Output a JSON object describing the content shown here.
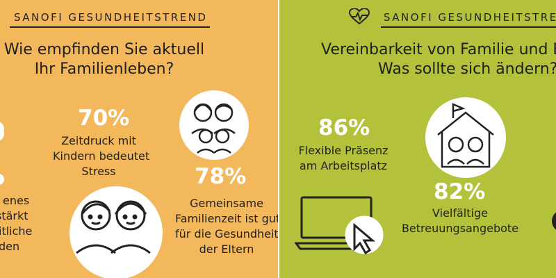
{
  "left_panel": {
    "header": "SANOFI GESUNDHEITSTREND",
    "title_lines": [
      "Wie empfinden Sie aktuell",
      "Ihr Familienleben?"
    ],
    "stat_1": {
      "value": "70%",
      "lines": [
        "Zeitdruck mit",
        "Kindern bedeutet",
        "Stress"
      ]
    },
    "stat_2": {
      "value": "78%",
      "lines": [
        "Gemeinsame",
        "Familienzeit ist gut",
        "für die Gesundheit",
        "der Eltern"
      ]
    },
    "partial_caption_lines": [
      "enes",
      "stärkt",
      "itliche",
      "den"
    ],
    "icons": [
      "family-icon",
      "couple-faces-icon"
    ]
  },
  "right_panel": {
    "header": "SANOFI GESUNDHEITSTREND",
    "title_lines": [
      "Vereinbarkeit von Familie und B",
      "Was sollte sich ändern?"
    ],
    "stat_1": {
      "value": "86%",
      "lines": [
        "Flexible Präsenz",
        "am Arbeitsplatz"
      ]
    },
    "stat_2": {
      "value": "82%",
      "lines": [
        "Vielfältige",
        "Betreuungsangebote"
      ]
    },
    "icons": [
      "heart-pulse-icon",
      "house-children-icon",
      "laptop-cursor-icon"
    ]
  },
  "colors": {
    "left_bg": "#f4b85c",
    "right_bg": "#b4c23b",
    "text": "#222222",
    "accent_white": "#ffffff"
  }
}
